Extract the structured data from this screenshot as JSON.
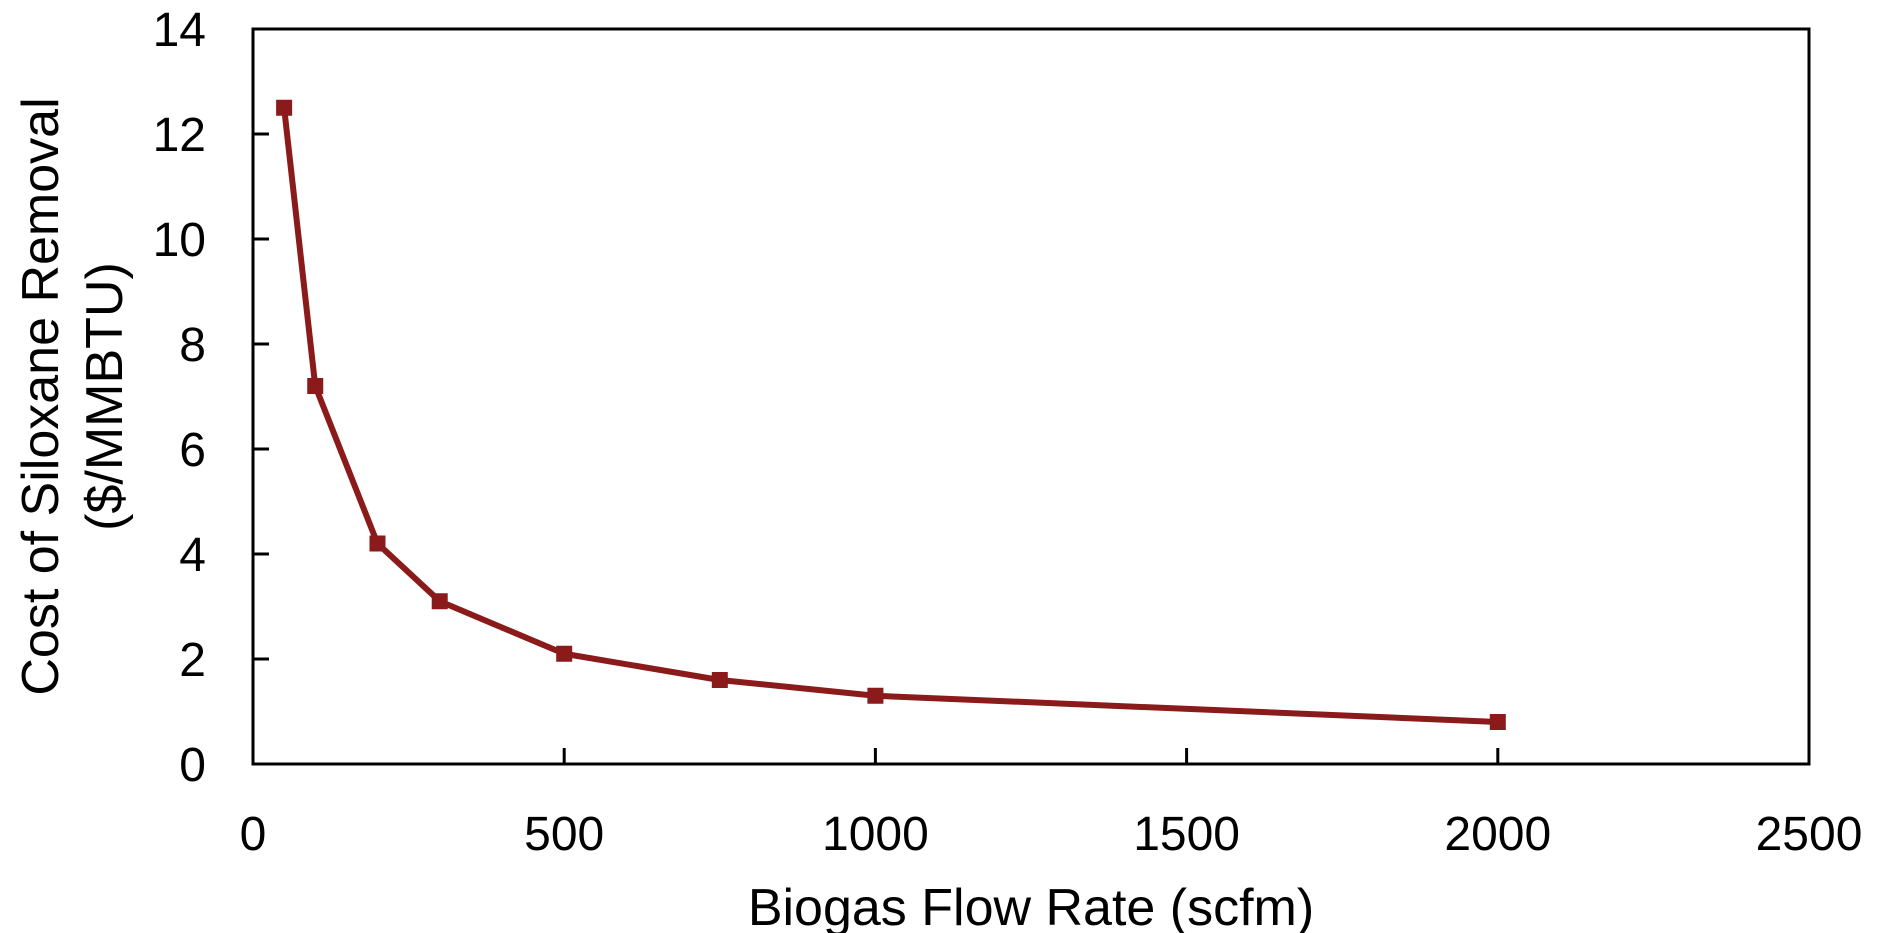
{
  "chart_data": {
    "type": "line",
    "title": "",
    "xlabel": "Biogas Flow Rate (scfm)",
    "ylabel_lines": [
      "Cost of Siloxane Removal",
      "($/MMBTU)"
    ],
    "xlim": [
      0,
      2500
    ],
    "ylim": [
      0,
      14
    ],
    "x_ticks": [
      0,
      500,
      1000,
      1500,
      2000,
      2500
    ],
    "y_ticks": [
      0,
      2,
      4,
      6,
      8,
      10,
      12,
      14
    ],
    "grid": false,
    "legend": "none",
    "series": [
      {
        "color": "#8b1a1a",
        "marker": "square",
        "x": [
          50,
          100,
          200,
          300,
          500,
          750,
          1000,
          2000
        ],
        "y": [
          12.5,
          7.2,
          4.2,
          3.1,
          2.1,
          1.6,
          1.3,
          0.8
        ]
      }
    ]
  }
}
